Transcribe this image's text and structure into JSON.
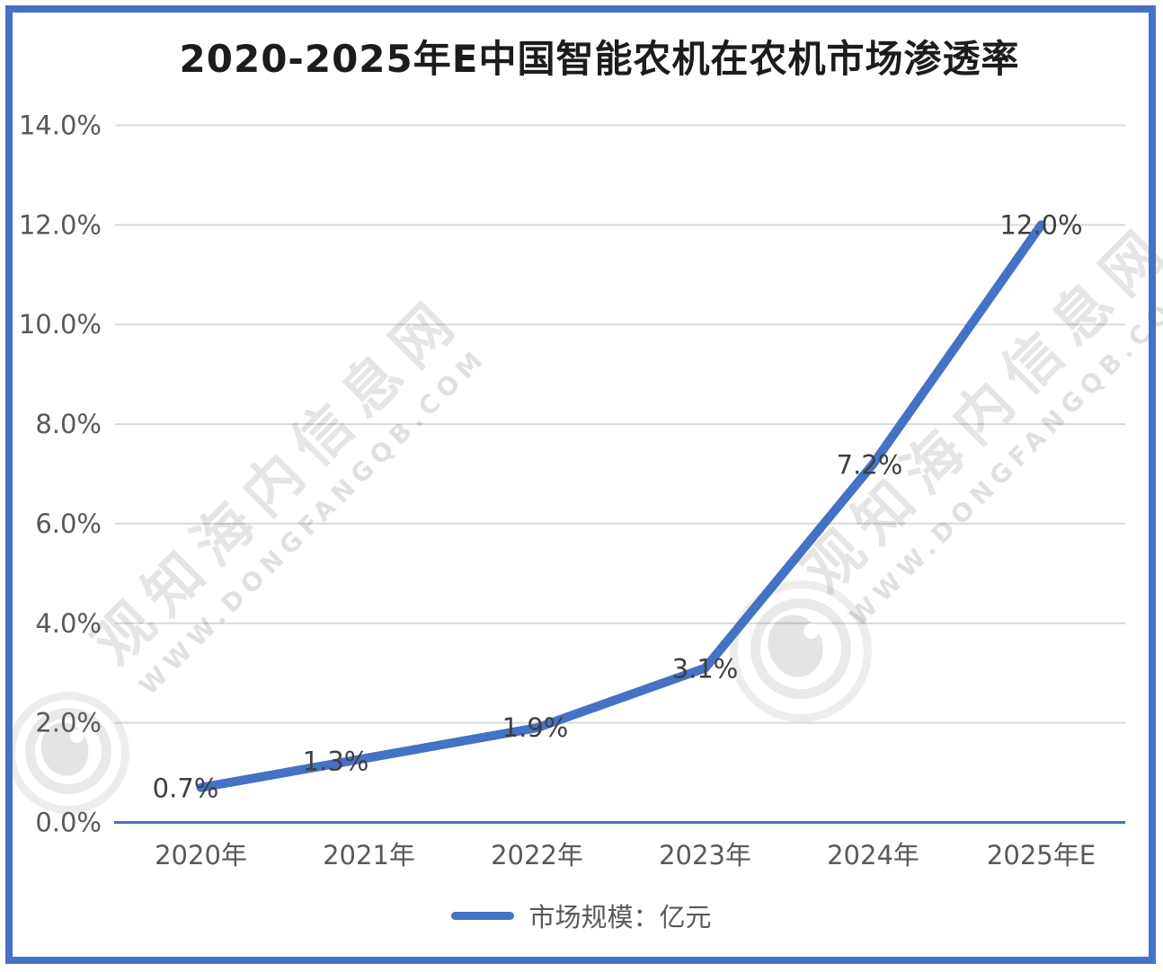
{
  "window": {
    "frame_color": "#4472C4",
    "background": "#FFFFFF"
  },
  "title": "2020-2025年E中国智能农机在农机市场渗透率",
  "legend": {
    "label": "市场规模：亿元"
  },
  "watermark": {
    "cn": "观知海内信息网",
    "en": "WWW.DONGFANGQB.COM"
  },
  "chart_data": {
    "type": "line",
    "title": "2020-2025年E中国智能农机在农机市场渗透率",
    "categories": [
      "2020年",
      "2021年",
      "2022年",
      "2023年",
      "2024年",
      "2025年E"
    ],
    "series": [
      {
        "name": "市场规模：亿元",
        "color": "#4472C4",
        "values": [
          0.7,
          1.3,
          1.9,
          3.1,
          7.2,
          12.0
        ]
      }
    ],
    "data_labels": [
      "0.7%",
      "1.3%",
      "1.9%",
      "3.1%",
      "7.2%",
      "12.0%"
    ],
    "xlabel": "",
    "ylabel": "",
    "ylim": [
      0,
      14
    ],
    "ytick_step": 2,
    "ytick_labels": [
      "0.0%",
      "2.0%",
      "4.0%",
      "6.0%",
      "8.0%",
      "10.0%",
      "12.0%",
      "14.0%"
    ],
    "grid": true,
    "legend_position": "bottom",
    "colors": {
      "line": "#4472C4",
      "axis_line": "#4472C4",
      "gridline": "#D9D9D9",
      "tick_label": "#595959",
      "data_label": "#3F3F3F",
      "title": "#1C1C1C"
    }
  }
}
